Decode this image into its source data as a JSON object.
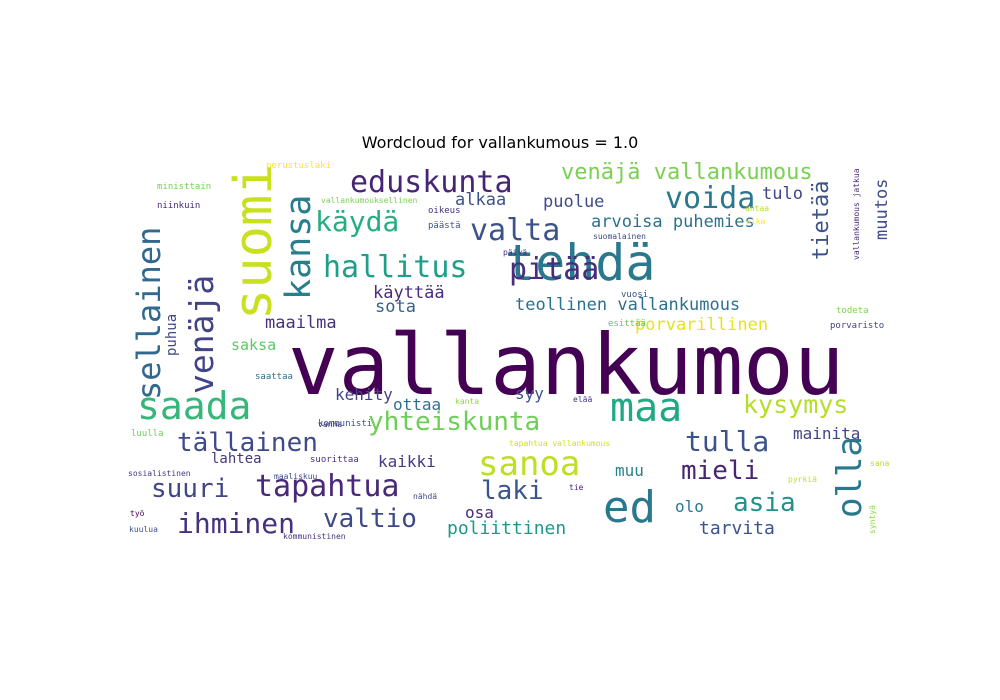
{
  "title": "Wordcloud for vallankumous = 1.0",
  "words": [
    {
      "text": "vallankumou",
      "color": "#440154"
    },
    {
      "text": "suomi",
      "color": "#c8e020"
    },
    {
      "text": "tehdä",
      "color": "#2a788e"
    },
    {
      "text": "eduskunta",
      "color": "#482475"
    },
    {
      "text": "sellainen",
      "color": "#31688e"
    },
    {
      "text": "venäjä",
      "color": "#414487"
    },
    {
      "text": "kansa",
      "color": "#277f8e"
    },
    {
      "text": "saada",
      "color": "#35b779"
    },
    {
      "text": "maa",
      "color": "#22a884"
    },
    {
      "text": "ed",
      "color": "#2a788e"
    },
    {
      "text": "olla",
      "color": "#2a788e"
    },
    {
      "text": "hallitus",
      "color": "#1f9e89"
    },
    {
      "text": "pitää",
      "color": "#472d7b"
    },
    {
      "text": "valta",
      "color": "#3b528b"
    },
    {
      "text": "voida",
      "color": "#2a788e"
    },
    {
      "text": "käydä",
      "color": "#27ad81"
    },
    {
      "text": "sanoa",
      "color": "#bddf26"
    },
    {
      "text": "tapahtua",
      "color": "#482878"
    },
    {
      "text": "ihminen",
      "color": "#46327e"
    },
    {
      "text": "yhteiskunta",
      "color": "#6ece58"
    },
    {
      "text": "tällainen",
      "color": "#3e4a89"
    },
    {
      "text": "kysymys",
      "color": "#b5de2b"
    },
    {
      "text": "tulla",
      "color": "#3b528b"
    },
    {
      "text": "mieli",
      "color": "#482475"
    },
    {
      "text": "asia",
      "color": "#21918c"
    },
    {
      "text": "laki",
      "color": "#39568c"
    },
    {
      "text": "valtio",
      "color": "#3e4989"
    },
    {
      "text": "suuri",
      "color": "#404688"
    },
    {
      "text": "venäjä vallankumous",
      "color": "#7ad151"
    },
    {
      "text": "tietää",
      "color": "#3b528b"
    },
    {
      "text": "muutos",
      "color": "#3e4a89"
    },
    {
      "text": "alkaa",
      "color": "#3b528b"
    },
    {
      "text": "puolue",
      "color": "#3e4c8a"
    },
    {
      "text": "arvoisa puhemies",
      "color": "#2c728e"
    },
    {
      "text": "tulo",
      "color": "#414487"
    },
    {
      "text": "käyttää",
      "color": "#472d7b"
    },
    {
      "text": "teollinen vallankumous",
      "color": "#2d708e"
    },
    {
      "text": "sota",
      "color": "#33638d"
    },
    {
      "text": "maailma",
      "color": "#46337f"
    },
    {
      "text": "porvarillinen",
      "color": "#e5e419"
    },
    {
      "text": "saksa",
      "color": "#5ec962"
    },
    {
      "text": "puhua",
      "color": "#404788"
    },
    {
      "text": "kehity",
      "color": "#414487"
    },
    {
      "text": "ottaa",
      "color": "#2d708e"
    },
    {
      "text": "syy",
      "color": "#3b528b"
    },
    {
      "text": "mainita",
      "color": "#414487"
    },
    {
      "text": "kaikki",
      "color": "#443983"
    },
    {
      "text": "lahtea",
      "color": "#453781"
    },
    {
      "text": "muu",
      "color": "#26828e"
    },
    {
      "text": "olo",
      "color": "#2a788e"
    },
    {
      "text": "osa",
      "color": "#472d7b"
    },
    {
      "text": "poliittinen",
      "color": "#1f988b"
    },
    {
      "text": "tarvita",
      "color": "#3b528b"
    },
    {
      "text": "perustuslaki",
      "color": "#fde725"
    },
    {
      "text": "ministtain",
      "color": "#75d054"
    },
    {
      "text": "niinkuin",
      "color": "#482878"
    },
    {
      "text": "vallankumouksellinen",
      "color": "#7ad151"
    },
    {
      "text": "oikeus",
      "color": "#46337f"
    },
    {
      "text": "päästä",
      "color": "#3b528b"
    },
    {
      "text": "suomalainen",
      "color": "#3e4a89"
    },
    {
      "text": "päivä",
      "color": "#46327e"
    },
    {
      "text": "antaa",
      "color": "#b5de2b"
    },
    {
      "text": "vuosi",
      "color": "#3b528b"
    },
    {
      "text": "esittää",
      "color": "#5ec962"
    },
    {
      "text": "todeta",
      "color": "#7ad151"
    },
    {
      "text": "porvaristo",
      "color": "#414487"
    },
    {
      "text": "vallankumous jatkua",
      "color": "#472c7a"
    },
    {
      "text": "aika",
      "color": "#fde725"
    },
    {
      "text": "saattaa",
      "color": "#2c728e"
    },
    {
      "text": "vanha",
      "color": "#46327e"
    },
    {
      "text": "kommunisti",
      "color": "#3b528b"
    },
    {
      "text": "kanta",
      "color": "#8fd744"
    },
    {
      "text": "elää",
      "color": "#46337f"
    },
    {
      "text": "tapahtua vallankumous",
      "color": "#d2e21b"
    },
    {
      "text": "suorittaa",
      "color": "#46337f"
    },
    {
      "text": "maaliskuu",
      "color": "#3e4a89"
    },
    {
      "text": "sosialistinen",
      "color": "#453882"
    },
    {
      "text": "luulla",
      "color": "#6ece58"
    },
    {
      "text": "työ",
      "color": "#440154"
    },
    {
      "text": "kuulua",
      "color": "#3b528b"
    },
    {
      "text": "nähdä",
      "color": "#3e4989"
    },
    {
      "text": "tie",
      "color": "#482173"
    },
    {
      "text": "pyrkiä",
      "color": "#c8e020"
    },
    {
      "text": "sana",
      "color": "#b5de2b"
    },
    {
      "text": "syntyä",
      "color": "#8fd744"
    },
    {
      "text": "kommunistinen",
      "color": "#46327e"
    }
  ]
}
